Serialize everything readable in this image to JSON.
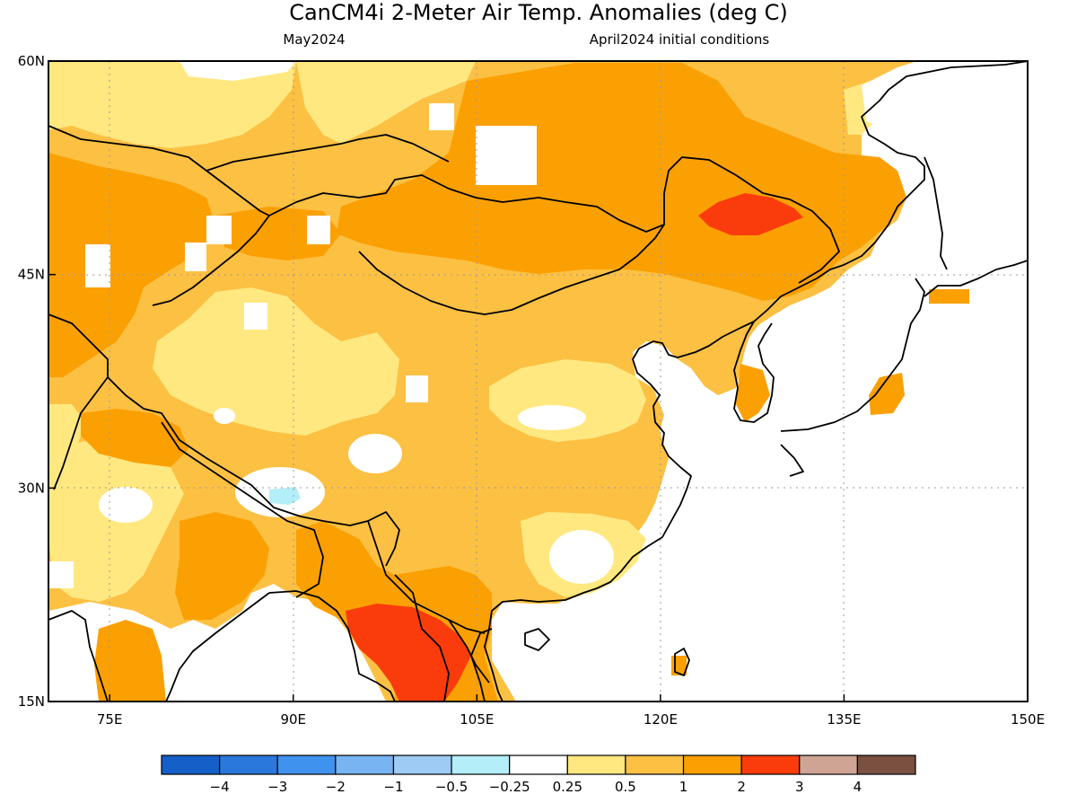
{
  "title": "CanCM4i 2-Meter Air Temp. Anomalies (deg C)",
  "subtitle_left": "May2024",
  "subtitle_right": "April2024 initial conditions",
  "map": {
    "lon_range": [
      70,
      150
    ],
    "lat_range": [
      15,
      60
    ],
    "lon_ticks": [
      {
        "value": 75,
        "label": "75E"
      },
      {
        "value": 90,
        "label": "90E"
      },
      {
        "value": 105,
        "label": "105E"
      },
      {
        "value": 120,
        "label": "120E"
      },
      {
        "value": 135,
        "label": "135E"
      },
      {
        "value": 150,
        "label": "150E"
      }
    ],
    "lat_ticks": [
      {
        "value": 15,
        "label": "15N"
      },
      {
        "value": 30,
        "label": "30N"
      },
      {
        "value": 45,
        "label": "45N"
      },
      {
        "value": 60,
        "label": "60N"
      }
    ],
    "gridlines": "dotted"
  },
  "colorbar": {
    "colors": [
      "#1560c8",
      "#2a78dc",
      "#3f92ee",
      "#78b4f2",
      "#9dcbf4",
      "#b4eef8",
      "#ffffff",
      "#ffe880",
      "#fcc043",
      "#fba003",
      "#fa3c0c",
      "#d0a494",
      "#7a5040"
    ],
    "labels": [
      "-4",
      "-3",
      "-2",
      "-1",
      "-0.5",
      "-0.25",
      "0.25",
      "0.5",
      "1",
      "2",
      "3",
      "4"
    ]
  },
  "palette": {
    "c05": "#ffe880",
    "c1": "#fcc043",
    "c2": "#fba003",
    "c3": "#fa3c0c",
    "neg": "#b4eef8",
    "ocean": "#ffffff",
    "coast": "#000000"
  }
}
